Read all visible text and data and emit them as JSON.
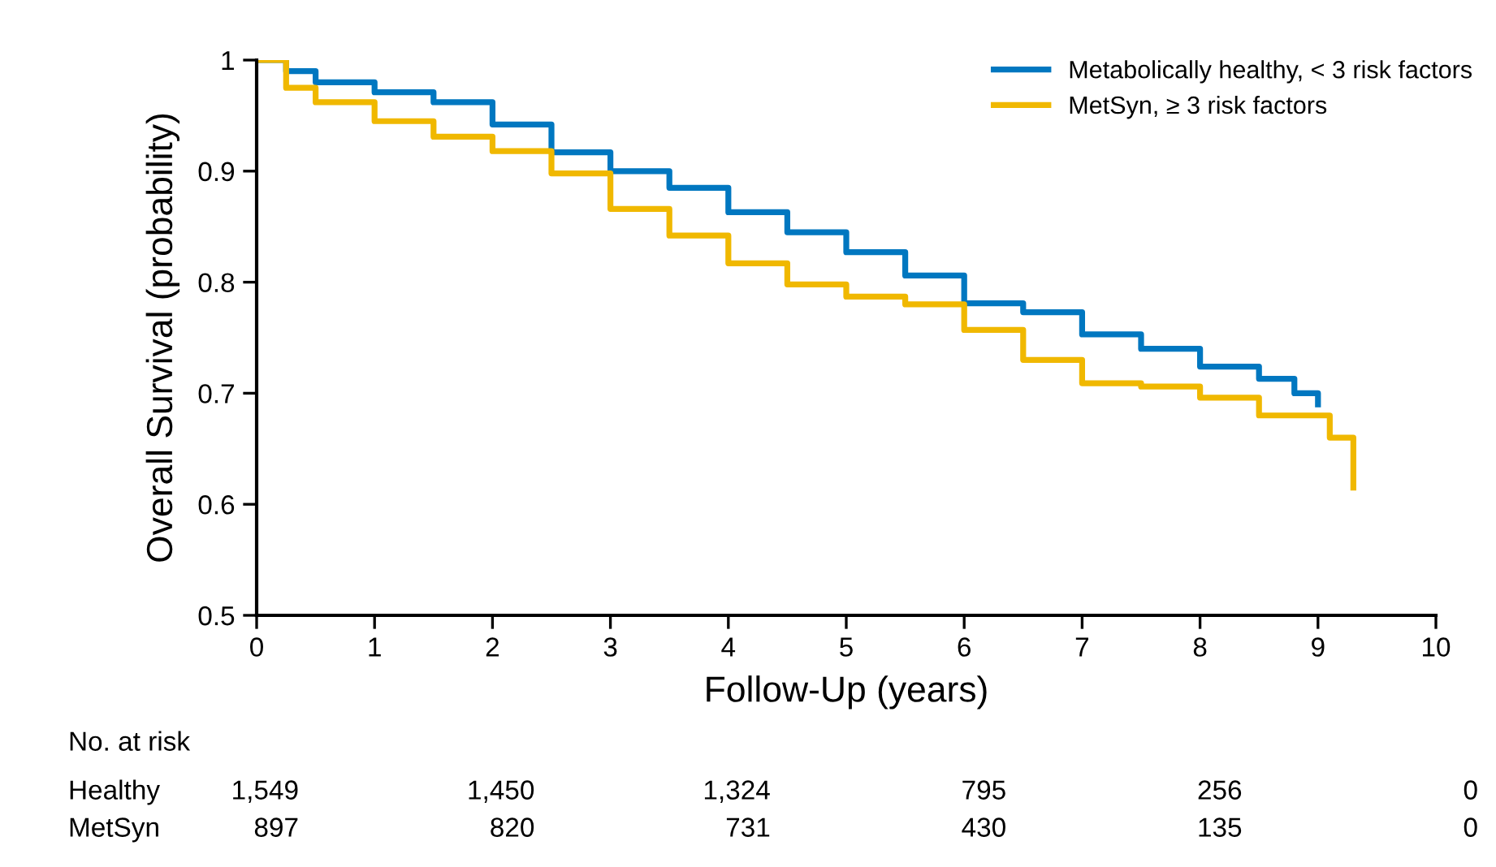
{
  "chart_data": {
    "type": "step",
    "xlabel": "Follow-Up (years)",
    "ylabel": "Overall Survival (probability)",
    "xlim": [
      0,
      10
    ],
    "xticks": [
      0,
      1,
      2,
      3,
      4,
      5,
      6,
      7,
      8,
      9,
      10
    ],
    "ylim": [
      0.5,
      1
    ],
    "yticks": [
      0.5,
      0.6,
      0.7,
      0.8,
      0.9,
      1
    ],
    "grid": false,
    "legend": "top right",
    "line_style": "solid",
    "marker": "none",
    "series": [
      {
        "name": "Metabolically healthy, < 3 risk factors",
        "color": "#0077c0",
        "x": [
          0,
          0.25,
          0.5,
          1,
          1.5,
          2,
          2.5,
          3,
          3.5,
          4,
          4.5,
          5,
          5.5,
          6,
          6.5,
          7,
          7.5,
          8,
          8.5,
          8.8,
          9.0
        ],
        "values": [
          1,
          0.99,
          0.98,
          0.971,
          0.962,
          0.942,
          0.917,
          0.9,
          0.885,
          0.863,
          0.845,
          0.827,
          0.806,
          0.781,
          0.773,
          0.753,
          0.74,
          0.724,
          0.713,
          0.7,
          0.69
        ]
      },
      {
        "name": "MetSyn, ≥ 3 risk factors",
        "color": "#f0b800",
        "x": [
          0,
          0.25,
          0.5,
          1,
          1.5,
          2,
          2.5,
          3,
          3.5,
          4,
          4.5,
          5,
          5.5,
          6,
          6.5,
          7,
          7.5,
          8,
          8.5,
          9.1,
          9.25,
          9.3
        ],
        "values": [
          1,
          0.975,
          0.962,
          0.945,
          0.931,
          0.918,
          0.898,
          0.866,
          0.842,
          0.817,
          0.798,
          0.787,
          0.78,
          0.757,
          0.73,
          0.709,
          0.706,
          0.696,
          0.68,
          0.66,
          0.66,
          0.615
        ]
      }
    ],
    "annotations": [
      "No. at risk",
      "Healthy",
      "1,549",
      "1,450",
      "1,324",
      "795",
      "256",
      "0",
      "MetSyn",
      "897",
      "820",
      "731",
      "430",
      "135",
      "0"
    ]
  }
}
